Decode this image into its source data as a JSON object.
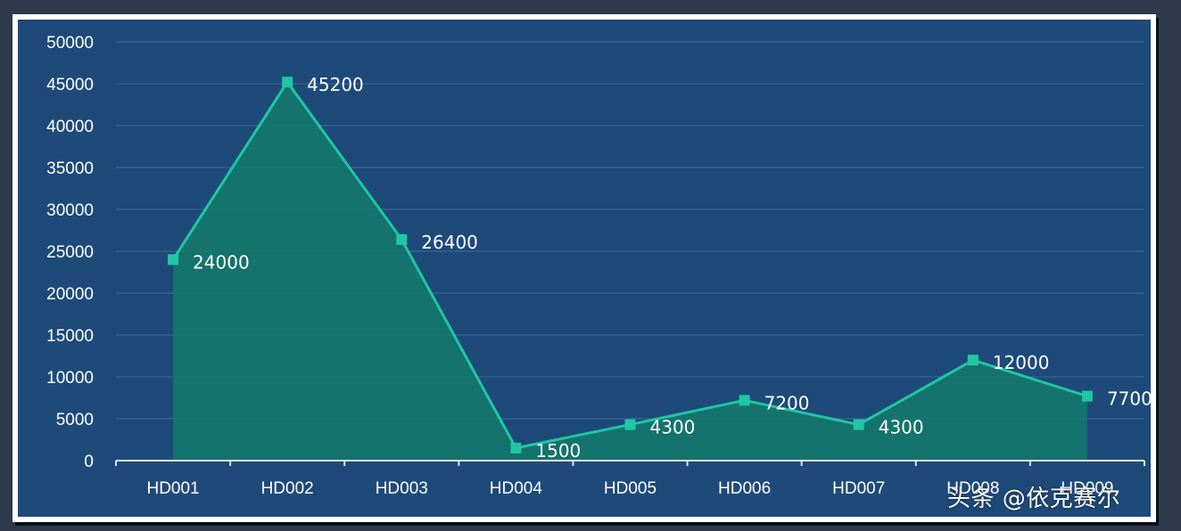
{
  "chart_data": {
    "type": "area",
    "title": "",
    "xlabel": "",
    "ylabel": "",
    "categories": [
      "HD001",
      "HD002",
      "HD003",
      "HD004",
      "HD005",
      "HD006",
      "HD007",
      "HD008",
      "HD009"
    ],
    "values": [
      24000,
      45200,
      26400,
      1500,
      4300,
      7200,
      4300,
      12000,
      7700
    ],
    "data_labels": [
      "24000",
      "45200",
      "26400",
      "1500",
      "4300",
      "7200",
      "4300",
      "12000",
      "7700"
    ],
    "ylim": [
      0,
      50000
    ],
    "y_ticks": [
      "0",
      "5000",
      "10000",
      "15000",
      "20000",
      "25000",
      "30000",
      "35000",
      "40000",
      "45000",
      "50000"
    ],
    "grid": true,
    "legend": "none",
    "colors": {
      "background": "#1e4a7a",
      "line": "#1fc7a4",
      "fill": "#137a6a",
      "marker": "#1fc7a4",
      "grid": "#3f6a97",
      "axis": "#dfe6ee",
      "text": "#ffffff"
    }
  },
  "watermark": "头条 @依克赛尔"
}
